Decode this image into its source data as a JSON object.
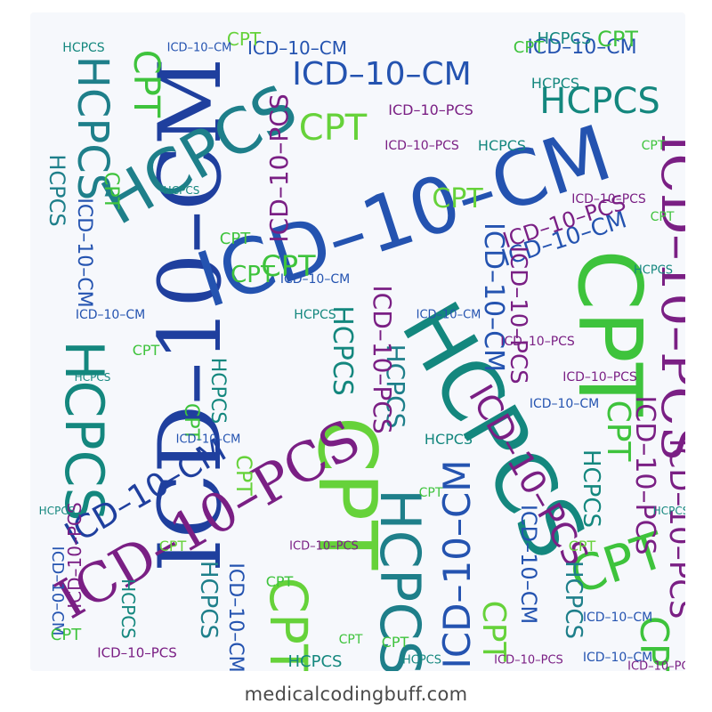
{
  "footer": {
    "site": "medicalcodingbuff.com"
  },
  "words": {
    "cpt": "CPT",
    "hcpcs": "HCPCS",
    "icd_cm": "ICD–10–CM",
    "icd_pcs": "ICD–10–PCS"
  },
  "colors": {
    "navy": "#1f3f9e",
    "blue": "#2453b0",
    "teal": "#14877e",
    "green": "#3ec33c",
    "lime": "#66d23a",
    "purple": "#7a1f84",
    "plum": "#5c2a8a",
    "sea": "#1e7f8a"
  }
}
